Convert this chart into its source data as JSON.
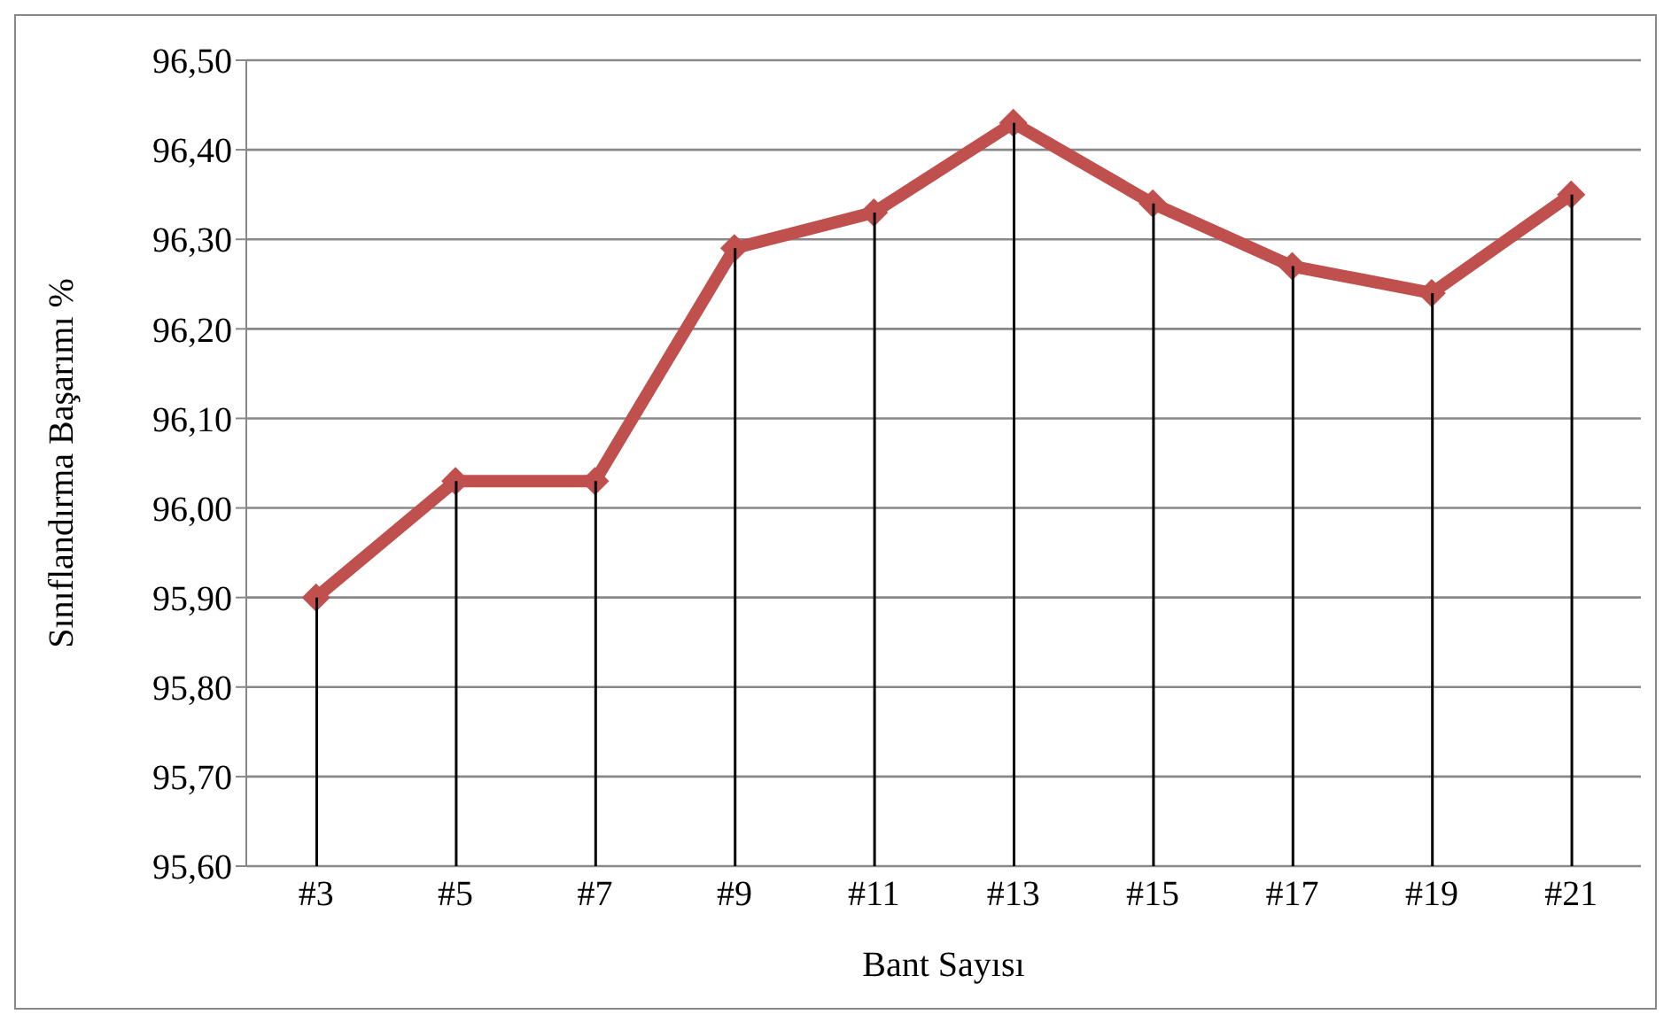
{
  "chart_data": {
    "type": "line",
    "xlabel": "Bant Sayısı",
    "ylabel": "Sınıflandırma Başarımı %",
    "categories": [
      "#3",
      "#5",
      "#7",
      "#9",
      "#11",
      "#13",
      "#15",
      "#17",
      "#19",
      "#21"
    ],
    "series": [
      {
        "color": "#c0504d",
        "values": [
          95.9,
          96.03,
          96.03,
          96.29,
          96.33,
          96.43,
          96.34,
          96.27,
          96.24,
          96.35
        ]
      },
      {
        "type": "bar",
        "color": "#000000",
        "values": [
          95.9,
          96.03,
          96.03,
          96.29,
          96.33,
          96.43,
          96.34,
          96.27,
          96.24,
          96.35
        ]
      }
    ],
    "ylim": [
      95.6,
      96.5
    ],
    "yticks": [
      {
        "value": 95.6,
        "label": "95,60"
      },
      {
        "value": 95.7,
        "label": "95,70"
      },
      {
        "value": 95.8,
        "label": "95,80"
      },
      {
        "value": 95.9,
        "label": "95,90"
      },
      {
        "value": 96.0,
        "label": "96,00"
      },
      {
        "value": 96.1,
        "label": "96,10"
      },
      {
        "value": 96.2,
        "label": "96,20"
      },
      {
        "value": 96.3,
        "label": "96,30"
      },
      {
        "value": 96.4,
        "label": "96,40"
      },
      {
        "value": 96.5,
        "label": "96,50"
      }
    ],
    "grid": "y",
    "marker": "diamond",
    "line_style": "solid",
    "legend": false
  }
}
